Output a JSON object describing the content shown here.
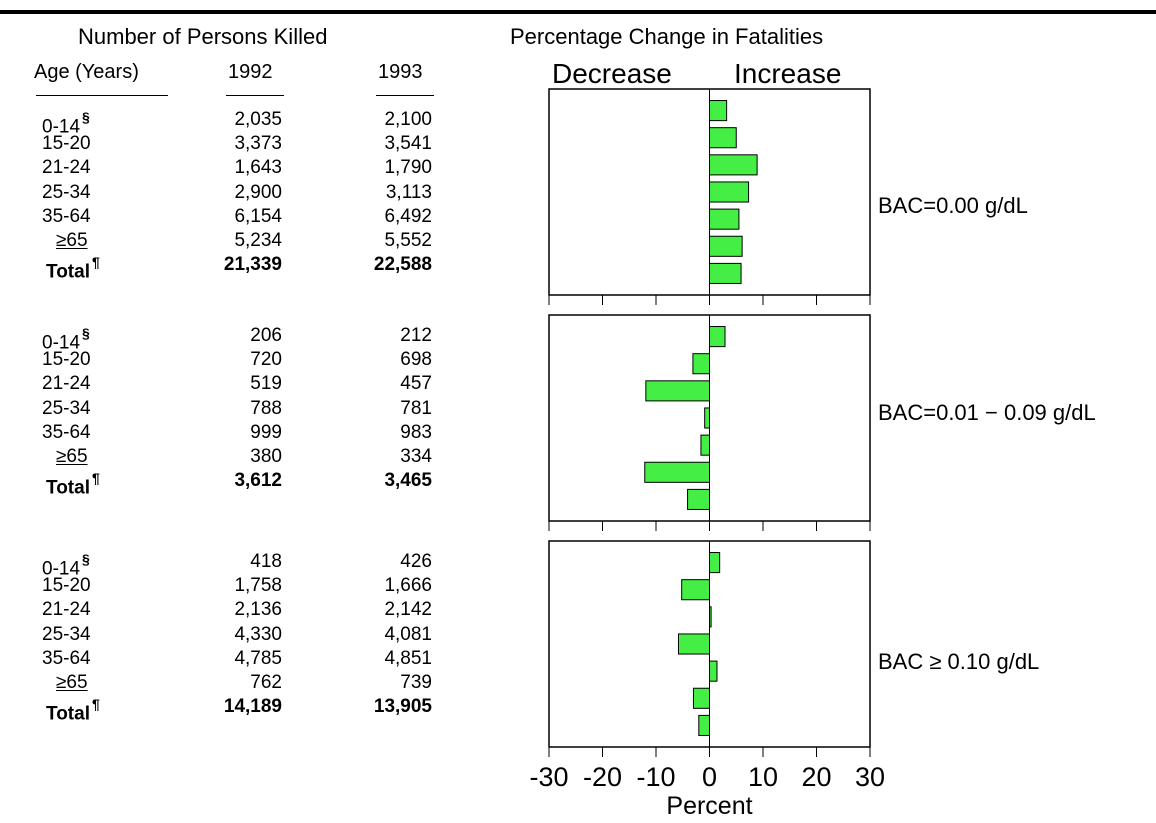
{
  "table": {
    "title": "Number of Persons Killed",
    "col_age": "Age (Years)",
    "col_1992": "1992",
    "col_1993": "1993",
    "groups": [
      {
        "rows": [
          {
            "age": "0-14",
            "mark": "§",
            "v1992": "2,035",
            "v1993": "2,100"
          },
          {
            "age": "15-20",
            "mark": "",
            "v1992": "3,373",
            "v1993": "3,541"
          },
          {
            "age": "21-24",
            "mark": "",
            "v1992": "1,643",
            "v1993": "1,790"
          },
          {
            "age": "25-34",
            "mark": "",
            "v1992": "2,900",
            "v1993": "3,113"
          },
          {
            "age": "35-64",
            "mark": "",
            "v1992": "6,154",
            "v1993": "6,492"
          },
          {
            "age": "≥65",
            "mark": "",
            "v1992": "5,234",
            "v1993": "5,552"
          },
          {
            "age": "Total",
            "mark": "¶",
            "v1992": "21,339",
            "v1993": "22,588"
          }
        ]
      },
      {
        "rows": [
          {
            "age": "0-14",
            "mark": "§",
            "v1992": "206",
            "v1993": "212"
          },
          {
            "age": "15-20",
            "mark": "",
            "v1992": "720",
            "v1993": "698"
          },
          {
            "age": "21-24",
            "mark": "",
            "v1992": "519",
            "v1993": "457"
          },
          {
            "age": "25-34",
            "mark": "",
            "v1992": "788",
            "v1993": "781"
          },
          {
            "age": "35-64",
            "mark": "",
            "v1992": "999",
            "v1993": "983"
          },
          {
            "age": "≥65",
            "mark": "",
            "v1992": "380",
            "v1993": "334"
          },
          {
            "age": "Total",
            "mark": "¶",
            "v1992": "3,612",
            "v1993": "3,465"
          }
        ]
      },
      {
        "rows": [
          {
            "age": "0-14",
            "mark": "§",
            "v1992": "418",
            "v1993": "426"
          },
          {
            "age": "15-20",
            "mark": "",
            "v1992": "1,758",
            "v1993": "1,666"
          },
          {
            "age": "21-24",
            "mark": "",
            "v1992": "2,136",
            "v1993": "2,142"
          },
          {
            "age": "25-34",
            "mark": "",
            "v1992": "4,330",
            "v1993": "4,081"
          },
          {
            "age": "35-64",
            "mark": "",
            "v1992": "4,785",
            "v1993": "4,851"
          },
          {
            "age": "≥65",
            "mark": "",
            "v1992": "762",
            "v1993": "739"
          },
          {
            "age": "Total",
            "mark": "¶",
            "v1992": "14,189",
            "v1993": "13,905"
          }
        ]
      }
    ]
  },
  "chart_data": {
    "type": "bar",
    "orientation": "horizontal",
    "title": "Percentage Change in Fatalities",
    "decrease_label": "Decrease",
    "increase_label": "Increase",
    "xlabel": "Percent",
    "xlim": [
      -30,
      30
    ],
    "xticks": [
      -30,
      -20,
      -10,
      0,
      10,
      20,
      30
    ],
    "xtick_labels": [
      "-30",
      "-20",
      "-10",
      "0",
      "10",
      "20",
      "30"
    ],
    "categories": [
      "0-14",
      "15-20",
      "21-24",
      "25-34",
      "35-64",
      "≥65",
      "Total"
    ],
    "bar_color": "#44ee44",
    "panels": [
      {
        "label": "BAC=0.00 g/dL",
        "values": [
          3.2,
          5.0,
          8.9,
          7.3,
          5.5,
          6.1,
          5.9
        ]
      },
      {
        "label": "BAC=0.01 − 0.09 g/dL",
        "values": [
          2.9,
          -3.1,
          -11.9,
          -0.9,
          -1.6,
          -12.1,
          -4.1
        ]
      },
      {
        "label": "BAC ≥ 0.10 g/dL",
        "values": [
          1.9,
          -5.2,
          0.3,
          -5.8,
          1.4,
          -3.0,
          -2.0
        ]
      }
    ]
  }
}
